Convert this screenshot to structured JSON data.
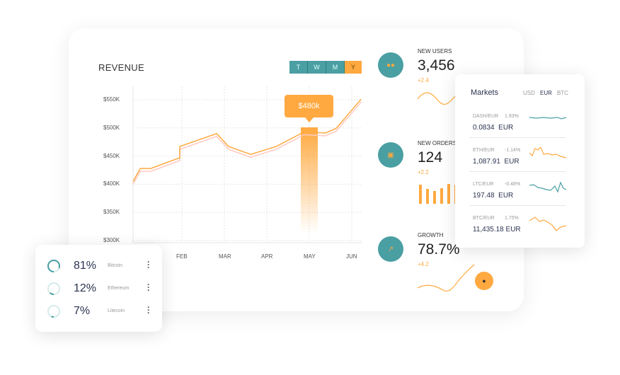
{
  "revenue": {
    "title": "REVENUE",
    "periods": [
      "T",
      "W",
      "M",
      "Y"
    ],
    "active_period": "Y",
    "tooltip": "$480k"
  },
  "chart_data": {
    "type": "line",
    "title": "REVENUE",
    "categories": [
      "FEB",
      "MAR",
      "APR",
      "MAY",
      "JUN"
    ],
    "y_ticks": [
      "$550K",
      "$500K",
      "$450K",
      "$400K",
      "$350K",
      "$300K"
    ],
    "ylim": [
      300,
      550
    ],
    "x": [
      -0.15,
      0.02,
      0.27,
      0.95,
      0.95,
      1.82,
      2.1,
      2.62,
      3.22,
      3.88,
      4.38,
      4.63,
      5.22
    ],
    "values": [
      405,
      428,
      428,
      447,
      467,
      490,
      467,
      453,
      467,
      493,
      491,
      499,
      551
    ],
    "highlight": {
      "category": "MAY",
      "value": 480,
      "label": "$480k"
    },
    "grid": true,
    "colors": {
      "line": "#ffa940",
      "shadow": "#ffc9c0"
    }
  },
  "stats": [
    {
      "label": "NEW USERS",
      "value": "3,456",
      "delta": "+2.4",
      "icon": "users-icon"
    },
    {
      "label": "NEW ORDERS",
      "value": "124",
      "delta": "+2.2",
      "icon": "shopping-bag-icon",
      "bars": [
        0.95,
        0.75,
        0.65,
        0.8,
        1,
        0.95
      ]
    },
    {
      "label": "GROWTH",
      "value": "78.7%",
      "delta": "+4.2",
      "icon": "trend-up-icon"
    }
  ],
  "markets": {
    "title": "Markets",
    "currencies": [
      "USD",
      "EUR",
      "BTC"
    ],
    "active_currency": "EUR",
    "rows": [
      {
        "pair": "DASH/EUR",
        "change": "1.93%",
        "value": "0.0834  EUR",
        "color": "#4a9fa3"
      },
      {
        "pair": "ETH/EUR",
        "change": "-1.14%",
        "value": "1,087.91  EUR",
        "color": "#ffa940"
      },
      {
        "pair": "LTC/EUR",
        "change": "-0.48%",
        "value": "197.48  EUR",
        "color": "#4a9fa3"
      },
      {
        "pair": "BTC/EUR",
        "change": "1.75%",
        "value": "11,435.18 EUR",
        "color": "#ffa940"
      }
    ]
  },
  "portfolio": [
    {
      "percent": "81%",
      "name": "Bitcoin",
      "fraction": 0.81
    },
    {
      "percent": "12%",
      "name": "Ethereum",
      "fraction": 0.12
    },
    {
      "percent": "7%",
      "name": "Litecoin",
      "fraction": 0.07
    }
  ],
  "colors": {
    "teal": "#4a9fa3",
    "orange": "#ffa940"
  }
}
